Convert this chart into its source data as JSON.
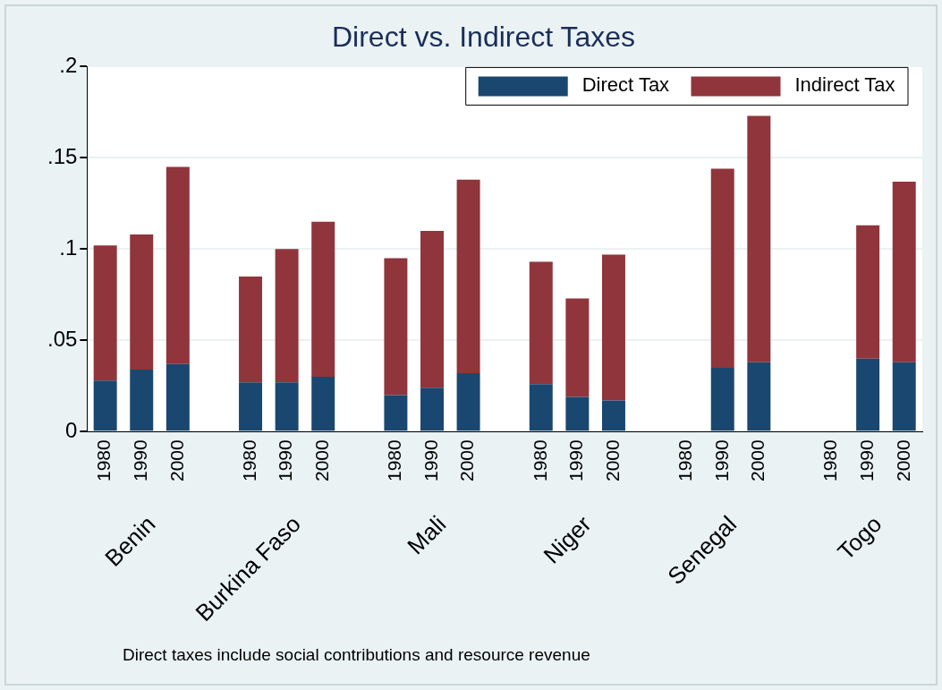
{
  "chart_data": {
    "type": "bar",
    "title": "Direct vs. Indirect Taxes",
    "categories": [
      "1980",
      "1990",
      "2000",
      null,
      "1980",
      "1990",
      "2000",
      null,
      "1980",
      "1990",
      "2000",
      null,
      "1980",
      "1990",
      "2000",
      null,
      "1980",
      "1990",
      "2000",
      null,
      "1980",
      "1990",
      "2000"
    ],
    "stacked": true,
    "series": [
      {
        "name": "Direct Tax",
        "color": "#1a476f",
        "values": [
          0.028,
          0.034,
          0.037,
          null,
          0.027,
          0.027,
          0.03,
          null,
          0.02,
          0.024,
          0.032,
          null,
          0.026,
          0.019,
          0.017,
          null,
          null,
          0.035,
          0.038,
          null,
          null,
          0.04,
          0.038
        ]
      },
      {
        "name": "Indirect Tax",
        "color": "#90353b",
        "values": [
          0.074,
          0.074,
          0.108,
          null,
          0.058,
          0.073,
          0.085,
          null,
          0.075,
          0.086,
          0.106,
          null,
          0.067,
          0.054,
          0.08,
          null,
          null,
          0.109,
          0.135,
          null,
          null,
          0.073,
          0.099
        ]
      }
    ],
    "ylim": [
      0,
      0.2
    ],
    "yticks": [
      {
        "value": 0,
        "label": "0"
      },
      {
        "value": 0.05,
        "label": ".05"
      },
      {
        "value": 0.1,
        "label": ".1"
      },
      {
        "value": 0.15,
        "label": ".15"
      },
      {
        "value": 0.2,
        "label": ".2"
      }
    ],
    "grid": "y",
    "legend": "top right",
    "annotations": [
      "Benin",
      "Burkina Faso",
      "Mali",
      "Niger",
      "Senegal",
      "Togo",
      "Direct taxes include social contributions and resource revenue"
    ]
  }
}
